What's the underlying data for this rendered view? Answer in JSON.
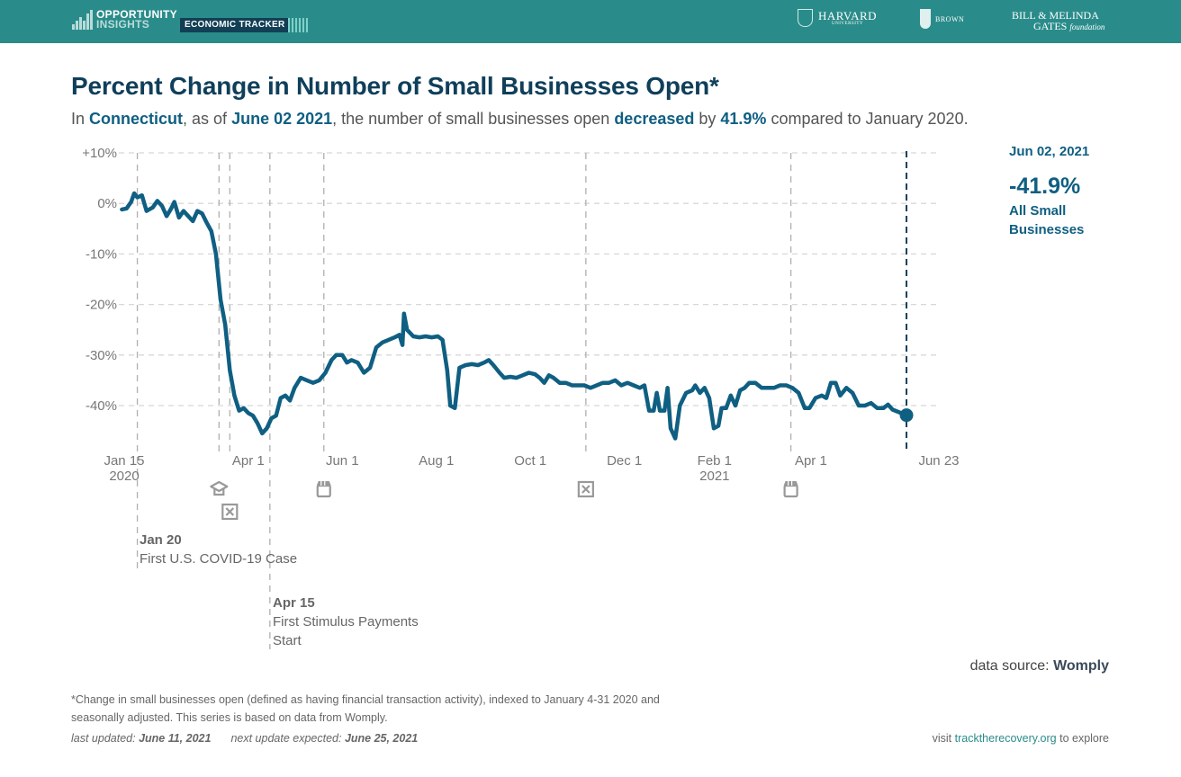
{
  "header": {
    "logo_line1": "OPPORTUNITY",
    "logo_line2": "INSIGHTS",
    "tracker_label": "ECONOMIC TRACKER",
    "partners": {
      "harvard": "HARVARD",
      "harvard_sub": "UNIVERSITY",
      "brown": "BROWN",
      "gates_line1": "BILL & MELINDA",
      "gates_line2": "GATES",
      "gates_line2_italic": "foundation"
    }
  },
  "headline": {
    "title": "Percent Change in Number of Small Businesses Open*",
    "sub_prefix": "In ",
    "location": "Connecticut",
    "sub_mid1": ", as of ",
    "as_of_date": "June 02 2021",
    "sub_mid2": ", the number of small businesses open ",
    "direction": "decreased",
    "sub_mid3": " by ",
    "change": "41.9%",
    "sub_suffix": " compared to January 2020."
  },
  "callout": {
    "date": "Jun 02, 2021",
    "value": "-41.9%",
    "label": "All Small Businesses"
  },
  "events": [
    {
      "date": "Jan 20",
      "text": "First U.S. COVID-19 Case"
    },
    {
      "date": "Apr 15",
      "text": "First Stimulus Payments Start"
    }
  ],
  "icons": [
    {
      "name": "school-closure-icon",
      "date": "2020-03-13"
    },
    {
      "name": "stay-at-home-icon",
      "date": "2020-03-20"
    },
    {
      "name": "reopening-store-icon",
      "date": "2020-05-20"
    },
    {
      "name": "stay-at-home-icon",
      "date": "2020-11-06"
    },
    {
      "name": "reopening-store-icon",
      "date": "2021-03-19"
    }
  ],
  "footer": {
    "data_source_label": "data source: ",
    "data_source": "Womply",
    "footnote": "*Change in small businesses open (defined as having financial transaction activity), indexed to January 4-31 2020 and seasonally adjusted. This series is based on data from Womply.",
    "last_updated_label": "last updated: ",
    "last_updated": "June 11, 2021",
    "next_update_label": "next update expected: ",
    "next_update": "June 25, 2021",
    "visit_prefix": "visit ",
    "visit_link": "tracktherecovery.org",
    "visit_suffix": " to explore"
  },
  "colors": {
    "header_bg": "#2a8c8a",
    "line": "#0f5f82",
    "title": "#0f3f5a",
    "grid": "#d8d8d8",
    "marker_line": "#b0b0b0",
    "current_marker": "#0f3f5a"
  },
  "chart_data": {
    "type": "line",
    "title": "Percent Change in Number of Small Businesses Open*",
    "xlabel": "",
    "ylabel": "",
    "ylim": [
      -48,
      10
    ],
    "xlim": [
      "2020-01-15",
      "2021-06-23"
    ],
    "yticks": [
      10,
      0,
      -10,
      -20,
      -30,
      -40
    ],
    "ytick_labels": [
      "+10%",
      "0%",
      "-10%",
      "-20%",
      "-30%",
      "-40%"
    ],
    "xticks": [
      {
        "date": "2020-01-15",
        "label": "Jan 15",
        "sub": "2020"
      },
      {
        "date": "2020-04-01",
        "label": "Apr 1",
        "sub": ""
      },
      {
        "date": "2020-06-01",
        "label": "Jun 1",
        "sub": ""
      },
      {
        "date": "2020-08-01",
        "label": "Aug 1",
        "sub": ""
      },
      {
        "date": "2020-10-01",
        "label": "Oct 1",
        "sub": ""
      },
      {
        "date": "2020-12-01",
        "label": "Dec 1",
        "sub": ""
      },
      {
        "date": "2021-02-01",
        "label": "Feb 1",
        "sub": "2021"
      },
      {
        "date": "2021-04-01",
        "label": "Apr 1",
        "sub": ""
      },
      {
        "date": "2021-06-23",
        "label": "Jun 23",
        "sub": ""
      }
    ],
    "grid": true,
    "event_lines": [
      "2020-01-20",
      "2020-03-13",
      "2020-03-20",
      "2020-04-15",
      "2020-05-20",
      "2020-11-06",
      "2021-03-19"
    ],
    "current_date": "2021-06-02",
    "series": [
      {
        "name": "All Small Businesses",
        "points": [
          [
            "2020-01-10",
            -1.2
          ],
          [
            "2020-01-13",
            -1.0
          ],
          [
            "2020-01-16",
            0.3
          ],
          [
            "2020-01-18",
            2.0
          ],
          [
            "2020-01-20",
            1.2
          ],
          [
            "2020-01-23",
            1.6
          ],
          [
            "2020-01-26",
            -1.5
          ],
          [
            "2020-01-30",
            -0.8
          ],
          [
            "2020-02-02",
            0.5
          ],
          [
            "2020-02-05",
            -0.5
          ],
          [
            "2020-02-08",
            -2.5
          ],
          [
            "2020-02-11",
            -1.0
          ],
          [
            "2020-02-13",
            0.3
          ],
          [
            "2020-02-16",
            -2.8
          ],
          [
            "2020-02-19",
            -1.5
          ],
          [
            "2020-02-22",
            -2.5
          ],
          [
            "2020-02-25",
            -3.5
          ],
          [
            "2020-02-28",
            -1.5
          ],
          [
            "2020-03-02",
            -2.0
          ],
          [
            "2020-03-05",
            -3.8
          ],
          [
            "2020-03-08",
            -5.5
          ],
          [
            "2020-03-11",
            -10.0
          ],
          [
            "2020-03-14",
            -19.0
          ],
          [
            "2020-03-17",
            -24.0
          ],
          [
            "2020-03-20",
            -33.0
          ],
          [
            "2020-03-23",
            -38.0
          ],
          [
            "2020-03-26",
            -41.0
          ],
          [
            "2020-03-29",
            -40.5
          ],
          [
            "2020-04-01",
            -41.5
          ],
          [
            "2020-04-04",
            -42.0
          ],
          [
            "2020-04-07",
            -43.5
          ],
          [
            "2020-04-10",
            -45.5
          ],
          [
            "2020-04-13",
            -44.5
          ],
          [
            "2020-04-16",
            -42.5
          ],
          [
            "2020-04-19",
            -42.0
          ],
          [
            "2020-04-22",
            -38.5
          ],
          [
            "2020-04-25",
            -38.0
          ],
          [
            "2020-04-28",
            -39.0
          ],
          [
            "2020-05-01",
            -36.5
          ],
          [
            "2020-05-05",
            -34.5
          ],
          [
            "2020-05-09",
            -35.0
          ],
          [
            "2020-05-13",
            -35.5
          ],
          [
            "2020-05-17",
            -35.0
          ],
          [
            "2020-05-21",
            -33.5
          ],
          [
            "2020-05-25",
            -31.0
          ],
          [
            "2020-05-28",
            -30.0
          ],
          [
            "2020-06-01",
            -30.0
          ],
          [
            "2020-06-04",
            -31.5
          ],
          [
            "2020-06-07",
            -31.0
          ],
          [
            "2020-06-11",
            -31.5
          ],
          [
            "2020-06-15",
            -33.5
          ],
          [
            "2020-06-19",
            -32.5
          ],
          [
            "2020-06-23",
            -28.5
          ],
          [
            "2020-06-27",
            -27.5
          ],
          [
            "2020-07-01",
            -27.0
          ],
          [
            "2020-07-05",
            -26.5
          ],
          [
            "2020-07-08",
            -26.0
          ],
          [
            "2020-07-10",
            -28.0
          ],
          [
            "2020-07-11",
            -21.8
          ],
          [
            "2020-07-13",
            -25.0
          ],
          [
            "2020-07-17",
            -26.3
          ],
          [
            "2020-07-21",
            -26.5
          ],
          [
            "2020-07-25",
            -26.3
          ],
          [
            "2020-07-29",
            -26.5
          ],
          [
            "2020-08-02",
            -26.3
          ],
          [
            "2020-08-05",
            -27.0
          ],
          [
            "2020-08-08",
            -33.0
          ],
          [
            "2020-08-10",
            -40.0
          ],
          [
            "2020-08-13",
            -40.5
          ],
          [
            "2020-08-16",
            -32.5
          ],
          [
            "2020-08-20",
            -32.0
          ],
          [
            "2020-08-24",
            -31.8
          ],
          [
            "2020-08-28",
            -32.0
          ],
          [
            "2020-09-01",
            -31.5
          ],
          [
            "2020-09-04",
            -31.0
          ],
          [
            "2020-09-07",
            -32.0
          ],
          [
            "2020-09-11",
            -33.5
          ],
          [
            "2020-09-14",
            -34.5
          ],
          [
            "2020-09-18",
            -34.3
          ],
          [
            "2020-09-22",
            -34.5
          ],
          [
            "2020-09-26",
            -34.0
          ],
          [
            "2020-09-30",
            -33.5
          ],
          [
            "2020-10-04",
            -33.8
          ],
          [
            "2020-10-07",
            -34.5
          ],
          [
            "2020-10-10",
            -35.5
          ],
          [
            "2020-10-13",
            -34.0
          ],
          [
            "2020-10-16",
            -34.5
          ],
          [
            "2020-10-20",
            -35.5
          ],
          [
            "2020-10-24",
            -35.5
          ],
          [
            "2020-10-28",
            -36.0
          ],
          [
            "2020-11-01",
            -36.0
          ],
          [
            "2020-11-05",
            -36.0
          ],
          [
            "2020-11-09",
            -36.5
          ],
          [
            "2020-11-13",
            -36.0
          ],
          [
            "2020-11-17",
            -35.5
          ],
          [
            "2020-11-21",
            -35.5
          ],
          [
            "2020-11-25",
            -35.0
          ],
          [
            "2020-11-29",
            -36.0
          ],
          [
            "2020-12-03",
            -35.5
          ],
          [
            "2020-12-07",
            -36.0
          ],
          [
            "2020-12-11",
            -36.5
          ],
          [
            "2020-12-14",
            -36.0
          ],
          [
            "2020-12-17",
            -41.0
          ],
          [
            "2020-12-20",
            -41.0
          ],
          [
            "2020-12-22",
            -37.5
          ],
          [
            "2020-12-24",
            -41.0
          ],
          [
            "2020-12-27",
            -41.0
          ],
          [
            "2020-12-29",
            -36.5
          ],
          [
            "2020-12-31",
            -44.5
          ],
          [
            "2021-01-03",
            -46.5
          ],
          [
            "2021-01-06",
            -40.0
          ],
          [
            "2021-01-10",
            -37.5
          ],
          [
            "2021-01-14",
            -37.0
          ],
          [
            "2021-01-16",
            -36.0
          ],
          [
            "2021-01-19",
            -37.5
          ],
          [
            "2021-01-22",
            -36.5
          ],
          [
            "2021-01-25",
            -38.5
          ],
          [
            "2021-01-28",
            -44.5
          ],
          [
            "2021-01-31",
            -44.0
          ],
          [
            "2021-02-02",
            -40.5
          ],
          [
            "2021-02-05",
            -40.5
          ],
          [
            "2021-02-08",
            -38.0
          ],
          [
            "2021-02-11",
            -40.0
          ],
          [
            "2021-02-14",
            -37.0
          ],
          [
            "2021-02-17",
            -36.5
          ],
          [
            "2021-02-20",
            -35.5
          ],
          [
            "2021-02-24",
            -35.5
          ],
          [
            "2021-02-28",
            -36.5
          ],
          [
            "2021-03-04",
            -36.5
          ],
          [
            "2021-03-08",
            -36.5
          ],
          [
            "2021-03-12",
            -36.0
          ],
          [
            "2021-03-16",
            -36.0
          ],
          [
            "2021-03-20",
            -36.5
          ],
          [
            "2021-03-24",
            -37.5
          ],
          [
            "2021-03-28",
            -40.5
          ],
          [
            "2021-03-31",
            -40.5
          ],
          [
            "2021-04-04",
            -38.5
          ],
          [
            "2021-04-08",
            -38.0
          ],
          [
            "2021-04-11",
            -38.5
          ],
          [
            "2021-04-14",
            -35.5
          ],
          [
            "2021-04-17",
            -35.5
          ],
          [
            "2021-04-20",
            -38.0
          ],
          [
            "2021-04-24",
            -36.5
          ],
          [
            "2021-04-28",
            -37.5
          ],
          [
            "2021-05-02",
            -40.0
          ],
          [
            "2021-05-06",
            -40.0
          ],
          [
            "2021-05-10",
            -39.5
          ],
          [
            "2021-05-14",
            -40.5
          ],
          [
            "2021-05-18",
            -40.5
          ],
          [
            "2021-05-21",
            -39.8
          ],
          [
            "2021-05-24",
            -40.8
          ],
          [
            "2021-06-02",
            -41.9
          ]
        ]
      }
    ]
  }
}
